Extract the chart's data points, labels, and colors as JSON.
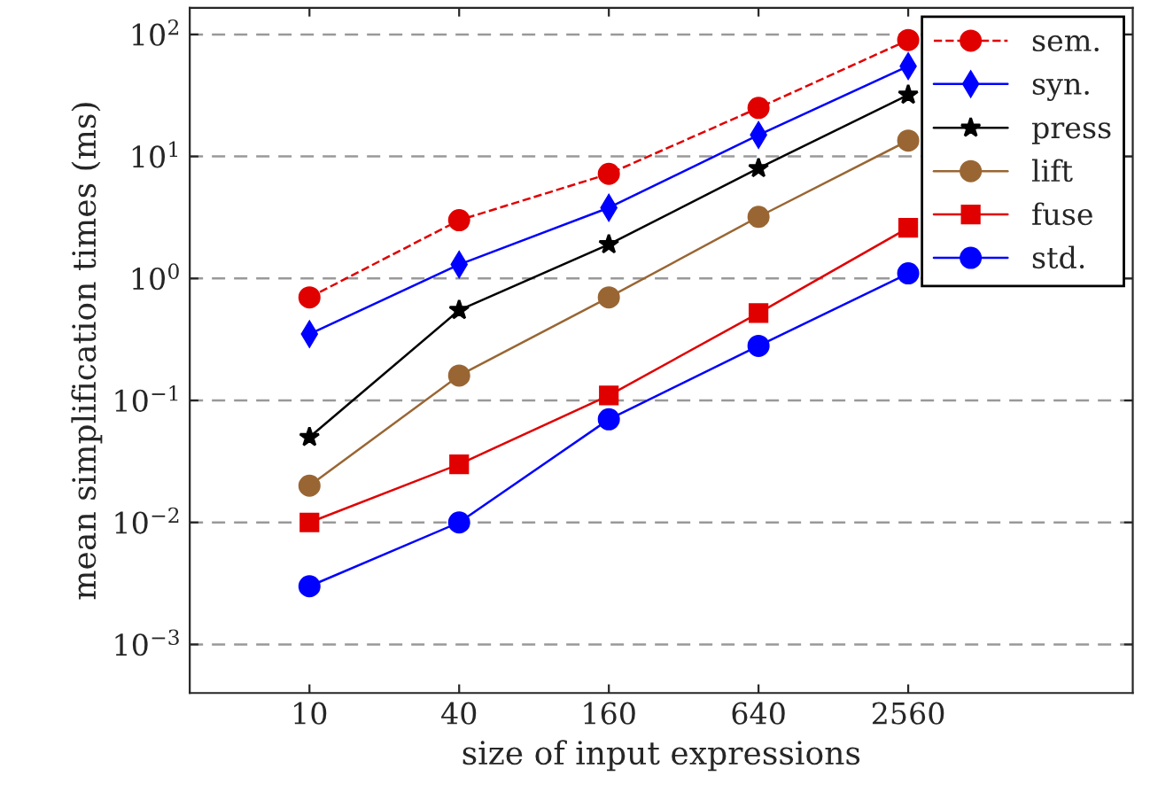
{
  "chart_data": {
    "type": "line",
    "xlabel": "size of input expressions",
    "ylabel": "mean simplification times (ms)",
    "x": [
      10,
      40,
      160,
      640,
      2560
    ],
    "log": "xy",
    "xlim": [
      3.3,
      20480
    ],
    "xticks": [
      10,
      40,
      160,
      640,
      2560
    ],
    "ylim": [
      0.0004,
      165
    ],
    "yticks": [
      {
        "value": 0.001,
        "label": "10$^{−3}$"
      },
      {
        "value": 0.01,
        "label": "10$^{−2}$"
      },
      {
        "value": 0.1,
        "label": "10$^{−1}$"
      },
      {
        "value": 1,
        "label": "10$^{0}$"
      },
      {
        "value": 10,
        "label": "10$^{1}$"
      },
      {
        "value": 100,
        "label": "10$^{2}$"
      }
    ],
    "grid": "y",
    "legend": "top right",
    "series": [
      {
        "name": "sem.",
        "color": "#e00000",
        "marker": "circle",
        "line_style": "dashed",
        "values": [
          0.7,
          3,
          7.2,
          25,
          90
        ]
      },
      {
        "name": "syn.",
        "color": "#0000ff",
        "marker": "diamond",
        "line_style": "solid",
        "values": [
          0.35,
          1.3,
          3.8,
          15,
          55
        ]
      },
      {
        "name": "press",
        "color": "#000000",
        "marker": "star",
        "line_style": "solid",
        "values": [
          0.05,
          0.55,
          1.9,
          8,
          32
        ]
      },
      {
        "name": "lift",
        "color": "#996633",
        "marker": "circle",
        "line_style": "solid",
        "values": [
          0.02,
          0.16,
          0.7,
          3.2,
          13.5
        ]
      },
      {
        "name": "fuse",
        "color": "#e00000",
        "marker": "square",
        "line_style": "solid",
        "values": [
          0.01,
          0.03,
          0.11,
          0.52,
          2.6
        ]
      },
      {
        "name": "std.",
        "color": "#0000ff",
        "marker": "circle",
        "line_style": "solid",
        "values": [
          0.003,
          0.01,
          0.07,
          0.28,
          1.1
        ]
      }
    ]
  }
}
